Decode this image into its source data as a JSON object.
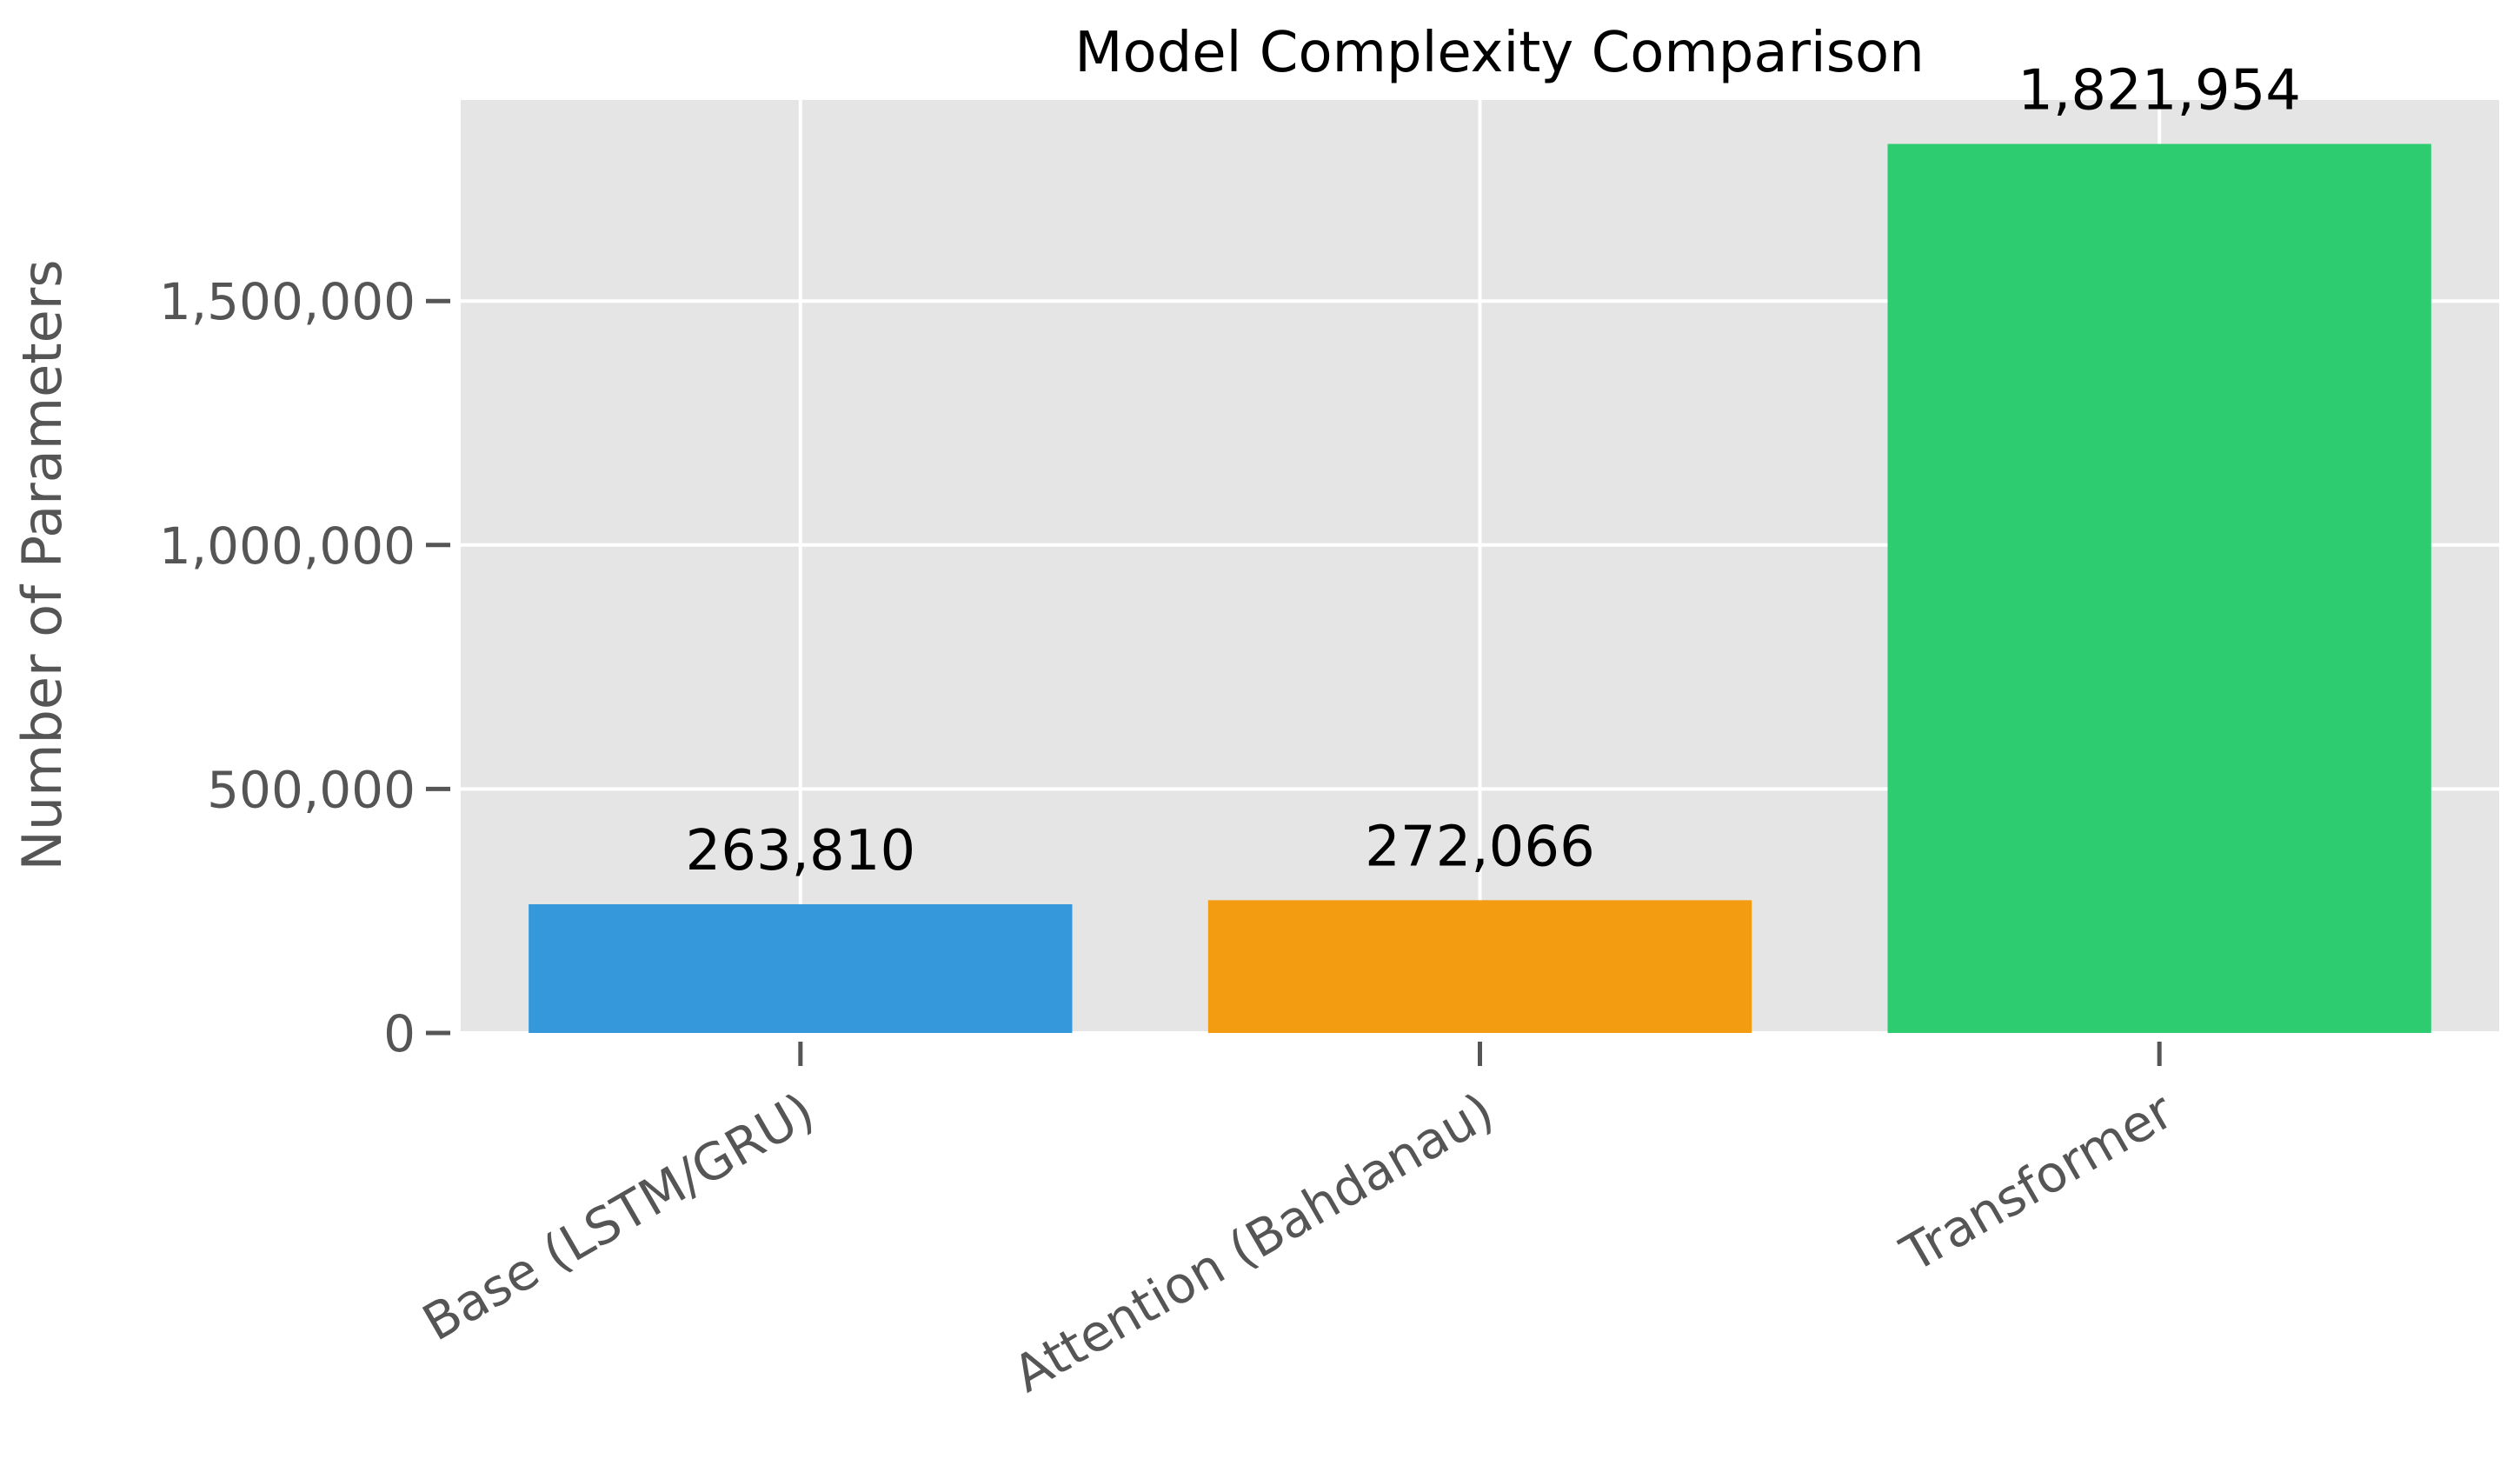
{
  "chart_data": {
    "type": "bar",
    "title": "Model Complexity Comparison",
    "xlabel": "",
    "ylabel": "Number of Parameters",
    "categories": [
      "Base (LSTM/GRU)",
      "Attention (Bahdanau)",
      "Transformer"
    ],
    "values": [
      263810,
      272066,
      1821954
    ],
    "value_labels": [
      "263,810",
      "272,066",
      "1,821,954"
    ],
    "colors": [
      "#3498db",
      "#f39c12",
      "#2ecc71"
    ],
    "ylim": [
      0,
      1912000
    ],
    "yticks": [
      0,
      500000,
      1000000,
      1500000
    ],
    "ytick_labels": [
      "0",
      "500,000",
      "1,000,000",
      "1,500,000"
    ],
    "grid": true,
    "background": "#e5e5e5",
    "xtick_rotation": "30 degrees"
  }
}
